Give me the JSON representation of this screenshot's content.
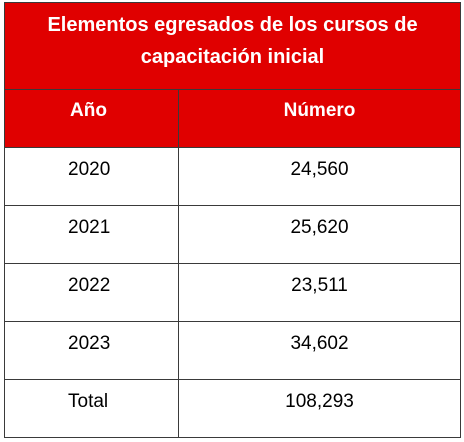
{
  "table": {
    "title": "Elementos egresados de los cursos de capacitación inicial",
    "headers": [
      "Año",
      "Número"
    ],
    "rows": [
      {
        "year": "2020",
        "number": "24,560"
      },
      {
        "year": "2021",
        "number": "25,620"
      },
      {
        "year": "2022",
        "number": "23,511"
      },
      {
        "year": "2023",
        "number": "34,602"
      },
      {
        "year": "Total",
        "number": "108,293"
      }
    ]
  },
  "colors": {
    "header_background": "#e00000",
    "header_text": "#ffffff",
    "border": "#3a3a3a"
  }
}
